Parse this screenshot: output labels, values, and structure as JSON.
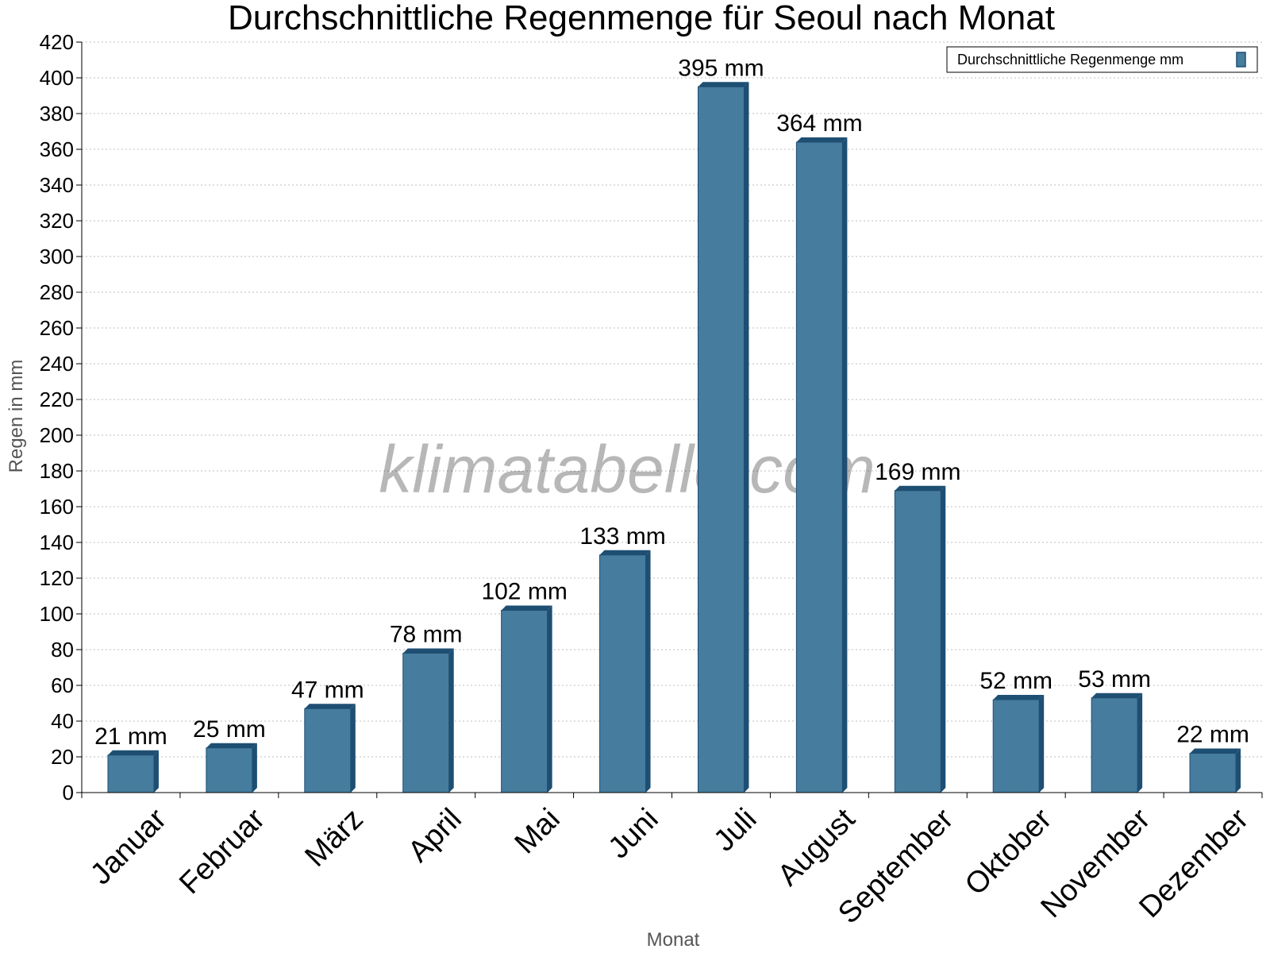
{
  "chart_data": {
    "type": "bar",
    "title": "Durchschnittliche Regenmenge für Seoul nach Monat",
    "xlabel": "Monat",
    "ylabel": "Regen in mm",
    "ylim": [
      0,
      420
    ],
    "ytick_step": 20,
    "grid": true,
    "legend_position": "top-right",
    "watermark": "klimatabelle.com",
    "value_suffix": " mm",
    "categories": [
      "Januar",
      "Februar",
      "März",
      "April",
      "Mai",
      "Juni",
      "Juli",
      "August",
      "September",
      "Oktober",
      "November",
      "Dezember"
    ],
    "series": [
      {
        "name": "Durchschnittliche Regenmenge mm",
        "values": [
          21,
          25,
          47,
          78,
          102,
          133,
          395,
          364,
          169,
          52,
          53,
          22
        ]
      }
    ],
    "colors": {
      "bar": "#467c9e",
      "bar_dark": "#1e4f73"
    }
  }
}
